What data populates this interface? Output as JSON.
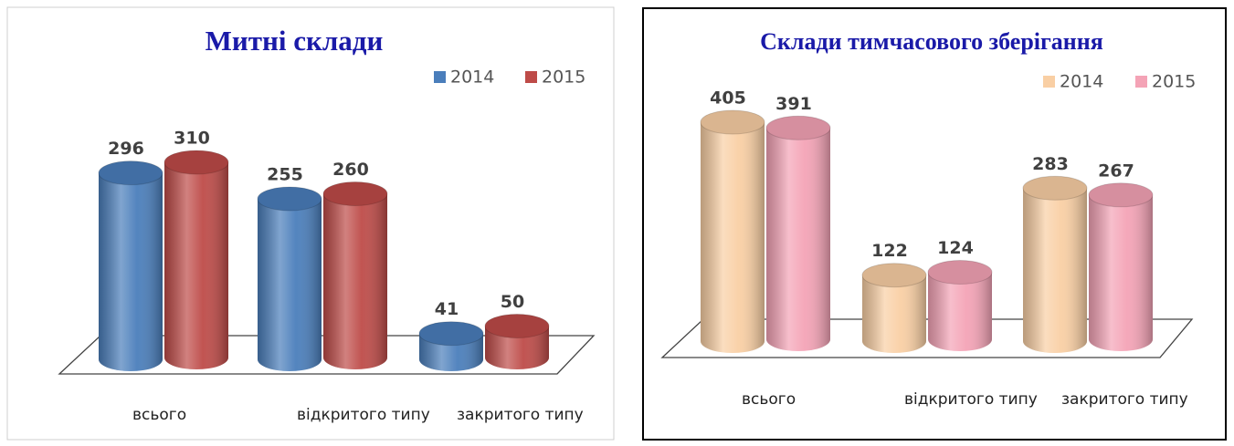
{
  "chart_data": [
    {
      "type": "bar3d",
      "title": "Митні склади",
      "categories": [
        "всього",
        "відкритого типу",
        "закритого типу"
      ],
      "series": [
        {
          "name": "2014",
          "color": "#4a7ebb",
          "values": [
            296,
            255,
            41
          ]
        },
        {
          "name": "2015",
          "color": "#be4b48",
          "values": [
            310,
            260,
            50
          ]
        }
      ],
      "legend": "top-right"
    },
    {
      "type": "bar3d",
      "title": "Склади тимчасового зберігання",
      "categories": [
        "всього",
        "відкритого типу",
        "закритого типу"
      ],
      "series": [
        {
          "name": "2014",
          "color": "#f9cfa4",
          "values": [
            405,
            122,
            283
          ]
        },
        {
          "name": "2015",
          "color": "#f4a3b6",
          "values": [
            391,
            124,
            267
          ]
        }
      ],
      "legend": "top-right"
    }
  ]
}
